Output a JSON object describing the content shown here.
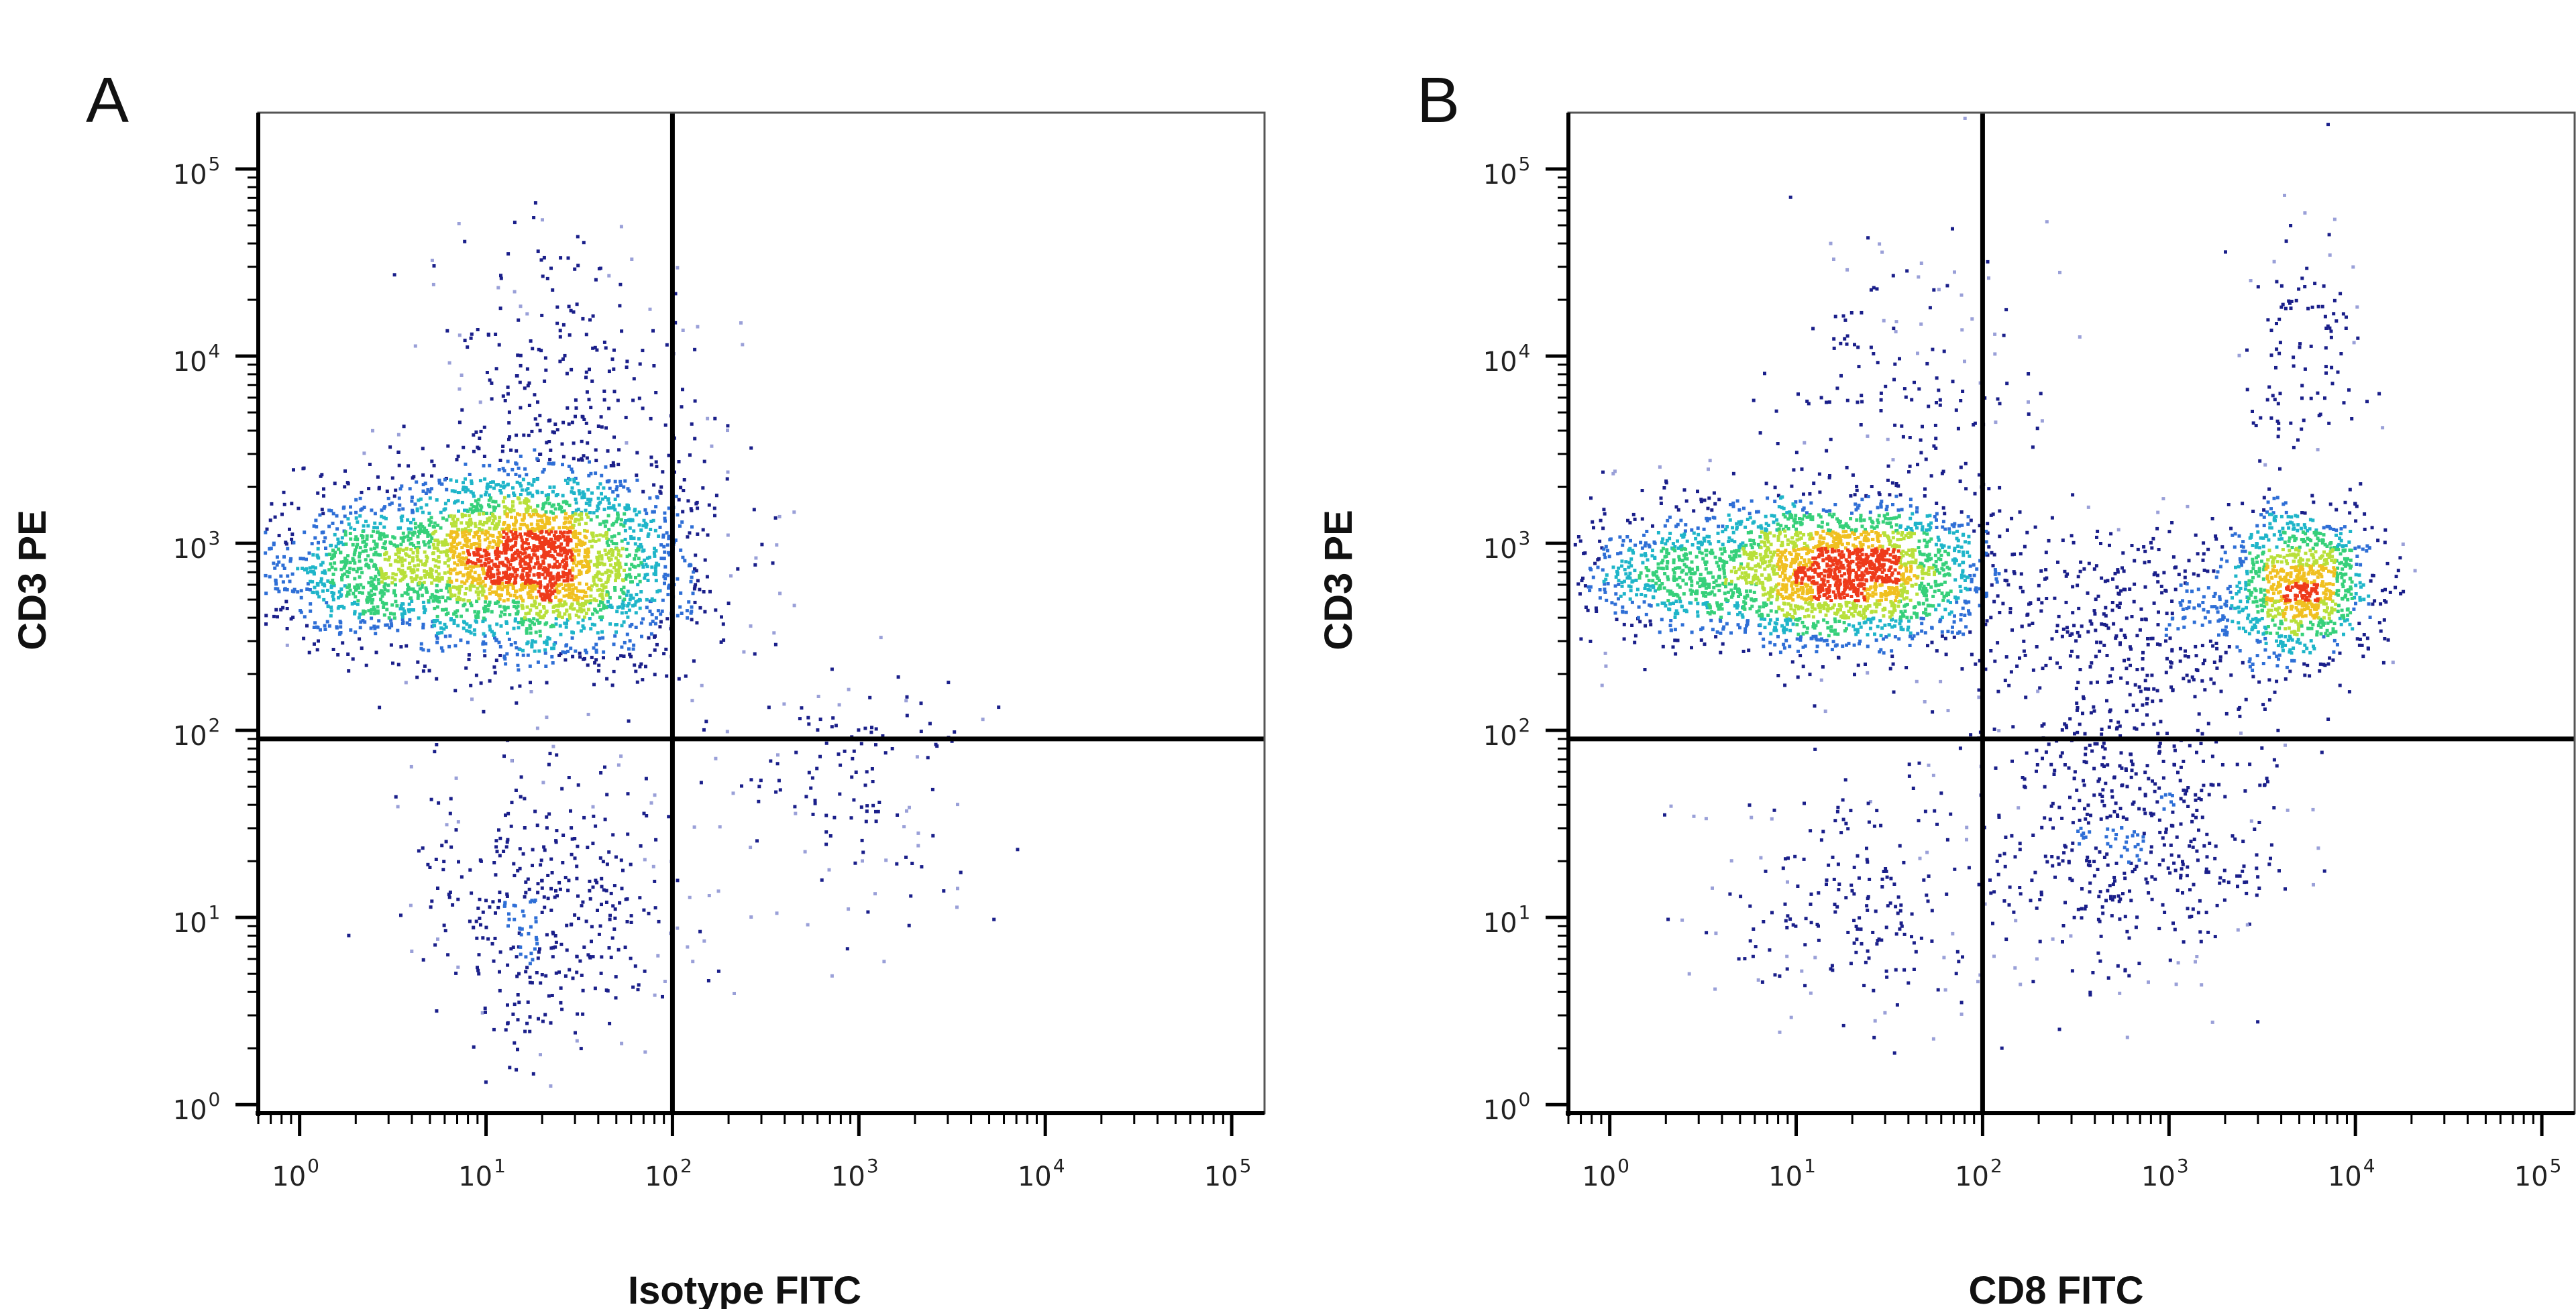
{
  "chart_data": [
    {
      "type": "scatter",
      "panel_label": "A",
      "xlabel": "Isotype FITC",
      "ylabel": "CD3 PE",
      "xscale": "log",
      "yscale": "log",
      "xlim": [
        0.6,
        150000
      ],
      "ylim": [
        0.9,
        200000
      ],
      "xticks": [
        {
          "base": "10",
          "exp": "0",
          "value": 1
        },
        {
          "base": "10",
          "exp": "1",
          "value": 10
        },
        {
          "base": "10",
          "exp": "2",
          "value": 100
        },
        {
          "base": "10",
          "exp": "3",
          "value": 1000
        },
        {
          "base": "10",
          "exp": "4",
          "value": 10000
        },
        {
          "base": "10",
          "exp": "5",
          "value": 100000
        }
      ],
      "yticks": [
        {
          "base": "10",
          "exp": "0",
          "value": 1
        },
        {
          "base": "10",
          "exp": "1",
          "value": 10
        },
        {
          "base": "10",
          "exp": "2",
          "value": 100
        },
        {
          "base": "10",
          "exp": "3",
          "value": 1000
        },
        {
          "base": "10",
          "exp": "4",
          "value": 10000
        },
        {
          "base": "10",
          "exp": "5",
          "value": 100000
        }
      ],
      "quadrant_gates": {
        "x": 100,
        "y": 90
      },
      "density_colors": [
        "#9aa0d8",
        "#1a1f8a",
        "#2f6fd6",
        "#1fb5c9",
        "#36d07a",
        "#b8e03a",
        "#f0c020",
        "#ee3a1a"
      ],
      "populations": [
        {
          "center": [
            18,
            800
          ],
          "spread": [
            0.42,
            0.26
          ],
          "count": 2600
        },
        {
          "center": [
            2,
            700
          ],
          "spread": [
            0.3,
            0.2
          ],
          "count": 650
        },
        {
          "center": [
            22,
            12
          ],
          "spread": [
            0.35,
            0.4
          ],
          "count": 420
        },
        {
          "center": [
            30,
            8000
          ],
          "spread": [
            0.38,
            0.38
          ],
          "count": 240
        },
        {
          "center": [
            900,
            50
          ],
          "spread": [
            0.35,
            0.42
          ],
          "count": 150
        }
      ]
    },
    {
      "type": "scatter",
      "panel_label": "B",
      "xlabel": "CD8 FITC",
      "ylabel": "CD3 PE",
      "xscale": "log",
      "yscale": "log",
      "xlim": [
        0.6,
        150000
      ],
      "ylim": [
        0.9,
        200000
      ],
      "xticks": [
        {
          "base": "10",
          "exp": "0",
          "value": 1
        },
        {
          "base": "10",
          "exp": "1",
          "value": 10
        },
        {
          "base": "10",
          "exp": "2",
          "value": 100
        },
        {
          "base": "10",
          "exp": "3",
          "value": 1000
        },
        {
          "base": "10",
          "exp": "4",
          "value": 10000
        },
        {
          "base": "10",
          "exp": "5",
          "value": 100000
        }
      ],
      "yticks": [
        {
          "base": "10",
          "exp": "0",
          "value": 1
        },
        {
          "base": "10",
          "exp": "1",
          "value": 10
        },
        {
          "base": "10",
          "exp": "2",
          "value": 100
        },
        {
          "base": "10",
          "exp": "3",
          "value": 1000
        },
        {
          "base": "10",
          "exp": "4",
          "value": 10000
        },
        {
          "base": "10",
          "exp": "5",
          "value": 100000
        }
      ],
      "quadrant_gates": {
        "x": 100,
        "y": 90
      },
      "density_colors": [
        "#9aa0d8",
        "#1a1f8a",
        "#2f6fd6",
        "#1fb5c9",
        "#36d07a",
        "#b8e03a",
        "#f0c020",
        "#ee3a1a"
      ],
      "populations": [
        {
          "center": [
            18,
            700
          ],
          "spread": [
            0.4,
            0.2
          ],
          "count": 2000
        },
        {
          "center": [
            2,
            700
          ],
          "spread": [
            0.3,
            0.18
          ],
          "count": 550
        },
        {
          "center": [
            5000,
            600
          ],
          "spread": [
            0.2,
            0.2
          ],
          "count": 950
        },
        {
          "center": [
            700,
            400
          ],
          "spread": [
            0.45,
            0.25
          ],
          "count": 380
        },
        {
          "center": [
            600,
            30
          ],
          "spread": [
            0.4,
            0.4
          ],
          "count": 560
        },
        {
          "center": [
            20,
            12
          ],
          "spread": [
            0.4,
            0.35
          ],
          "count": 220
        },
        {
          "center": [
            40,
            8000
          ],
          "spread": [
            0.35,
            0.4
          ],
          "count": 160
        },
        {
          "center": [
            5000,
            12000
          ],
          "spread": [
            0.18,
            0.35
          ],
          "count": 110
        }
      ]
    }
  ]
}
